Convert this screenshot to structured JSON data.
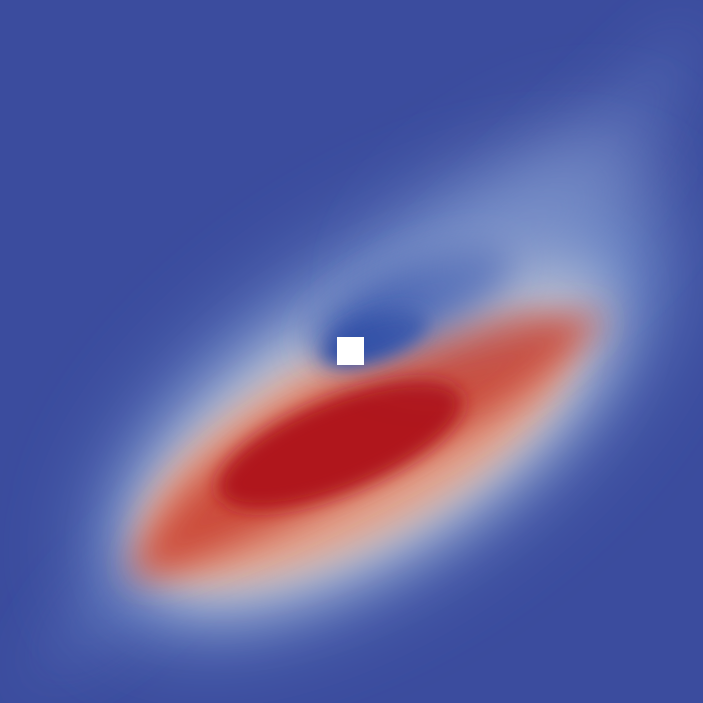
{
  "colormap": {
    "name": "cool-to-warm",
    "low": "#3b4c9e",
    "mid_low": "#6f8dcc",
    "mid": "#c9ccd6",
    "mid_high": "#d8714f",
    "high": "#b0161f"
  },
  "obstacle": {
    "color": "#ffffff"
  }
}
